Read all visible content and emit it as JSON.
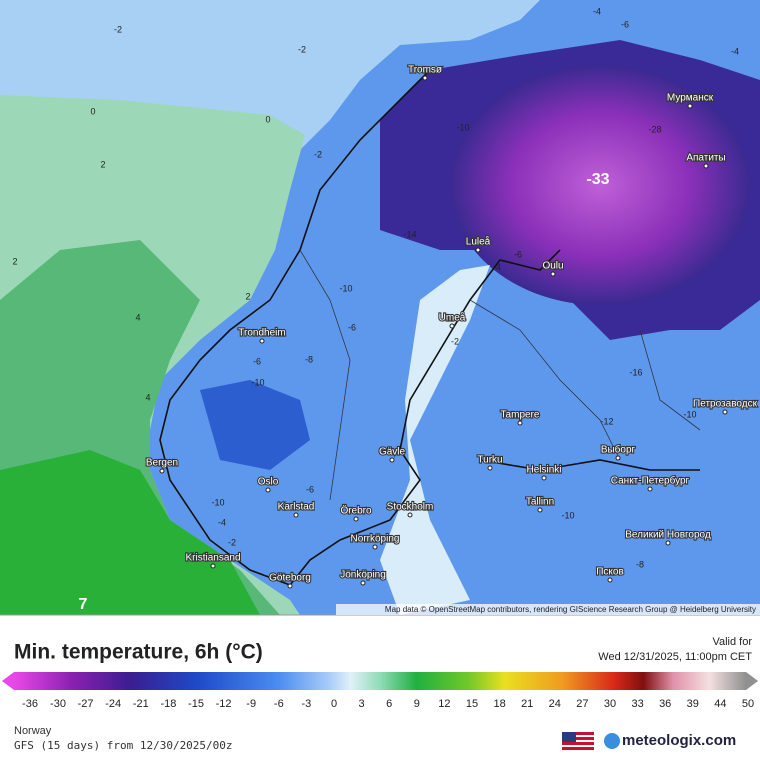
{
  "map": {
    "cities": [
      "Tromsø",
      "Мурманск",
      "Апатиты",
      "Luleå",
      "Oulu",
      "Umeå",
      "Trondheim",
      "Tampere",
      "Петрозаводск",
      "Bergen",
      "Gävle",
      "Turku",
      "Helsinki",
      "Выборг",
      "Санкт-Петербург",
      "Oslo",
      "Karlstad",
      "Örebro",
      "Stockholm",
      "Tallinn",
      "Norrköping",
      "Великий Новгород",
      "Kristiansand",
      "Göteborg",
      "Jönköping",
      "Псков"
    ],
    "contour_labels": [
      "-2",
      "-2",
      "-4",
      "-6",
      "-4",
      "0",
      "0",
      "-2",
      "2",
      "2",
      "2",
      "4",
      "4",
      "-10",
      "-28",
      "-33",
      "-14",
      "-4",
      "-6",
      "-10",
      "-6",
      "-2",
      "-8",
      "-6",
      "-10",
      "-16",
      "-12",
      "-10",
      "-6",
      "-10",
      "-4",
      "-2",
      "7",
      "-10",
      "-8"
    ],
    "attribution": "Map data © OpenStreetMap contributors, rendering GIScience Research Group @ Heidelberg University"
  },
  "legend": {
    "title": "Min. temperature, 6h (°C)",
    "valid_label": "Valid for",
    "valid_time": "Wed 12/31/2025, 11:00pm CET",
    "ticks": [
      "-36",
      "-30",
      "-27",
      "-24",
      "-21",
      "-18",
      "-15",
      "-12",
      "-9",
      "-6",
      "-3",
      "0",
      "3",
      "6",
      "9",
      "12",
      "15",
      "18",
      "21",
      "24",
      "27",
      "30",
      "33",
      "36",
      "39",
      "44",
      "50"
    ],
    "region": "Norway",
    "model": "GFS (15 days) from  12/30/2025/00z",
    "brand": "meteologix.com"
  }
}
